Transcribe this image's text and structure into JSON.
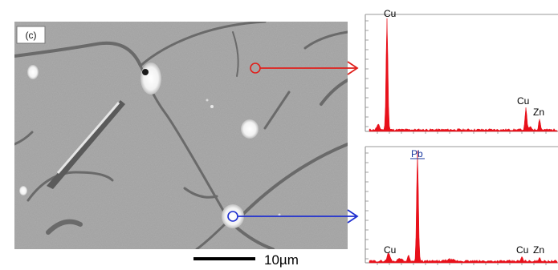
{
  "panel_label": "(c)",
  "scale_bar_label": "10µm",
  "colors": {
    "marker_top": "#e0201c",
    "marker_bottom": "#1f2fd0",
    "spectrum_fill": "#e8101a",
    "pb_label": "#1a3aa0",
    "axis": "#8a8a8a"
  },
  "spectra": [
    {
      "marker": "red",
      "peaks": [
        {
          "label": "Cu",
          "underline": false
        },
        {
          "label": "Cu",
          "underline": false
        },
        {
          "label": "Zn",
          "underline": false
        }
      ]
    },
    {
      "marker": "blue",
      "peaks": [
        {
          "label": "Pb",
          "underline": true
        },
        {
          "label": "Cu",
          "underline": false
        },
        {
          "label": "Cu",
          "underline": false
        },
        {
          "label": "Zn",
          "underline": false
        }
      ]
    }
  ]
}
